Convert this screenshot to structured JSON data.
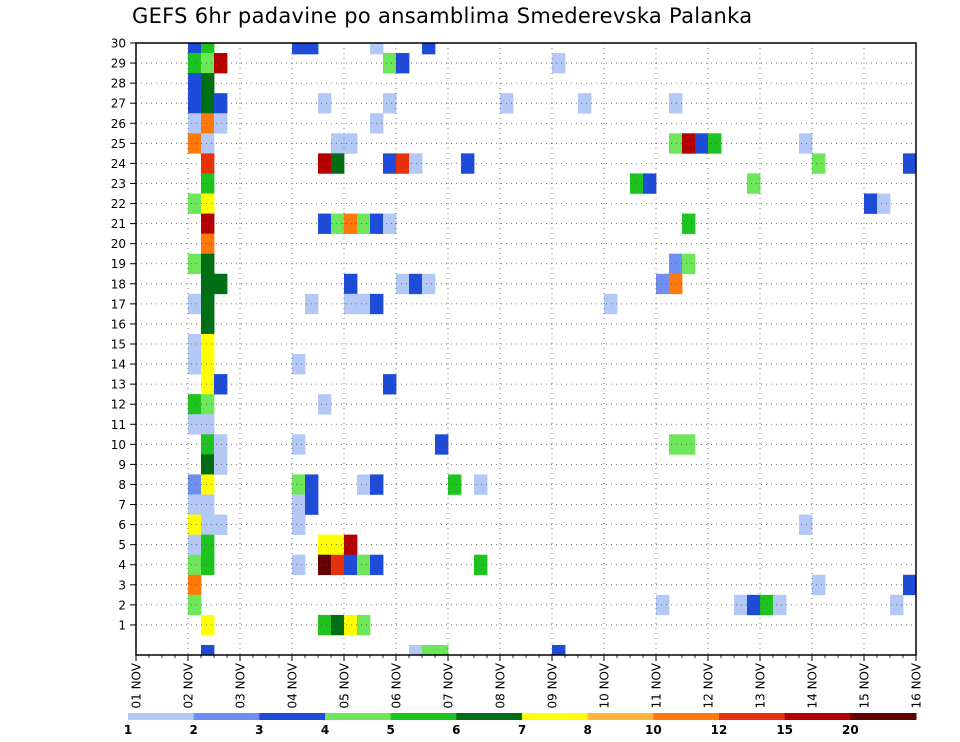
{
  "chart_data": {
    "type": "heatmap",
    "title": "GEFS 6hr padavine po ansamblima Smederevska Palanka",
    "x_tick_labels": [
      "01 NOV",
      "02 NOV",
      "03 NOV",
      "04 NOV",
      "05 NOV",
      "06 NOV",
      "07 NOV",
      "08 NOV",
      "09 NOV",
      "10 NOV",
      "11 NOV",
      "12 NOV",
      "13 NOV",
      "14 NOV",
      "15 NOV",
      "16 NOV"
    ],
    "y_tick_labels": [
      "1",
      "2",
      "3",
      "4",
      "5",
      "6",
      "7",
      "8",
      "9",
      "10",
      "11",
      "12",
      "13",
      "14",
      "15",
      "16",
      "17",
      "18",
      "19",
      "20",
      "21",
      "22",
      "23",
      "24",
      "25",
      "26",
      "27",
      "28",
      "29",
      "30"
    ],
    "x_range": [
      "01 NOV 00Z",
      "16 NOV 00Z"
    ],
    "x_step_hours": 6,
    "y_range": [
      0,
      30
    ],
    "grid": true,
    "colorbar": {
      "placement": "bottom",
      "labels": [
        "1",
        "2",
        "3",
        "4",
        "5",
        "6",
        "7",
        "8",
        "10",
        "12",
        "15",
        "20"
      ],
      "colors": [
        "#b4c8f5",
        "#6e8ef0",
        "#1e4bd8",
        "#6ee65a",
        "#1ec31e",
        "#006e14",
        "#ffff00",
        "#ffb43c",
        "#ff780a",
        "#e6320a",
        "#b40000",
        "#640000"
      ]
    },
    "cells": [
      [
        4,
        30,
        3
      ],
      [
        4,
        29,
        5
      ],
      [
        4,
        28,
        3
      ],
      [
        4,
        27,
        3
      ],
      [
        4,
        26,
        1
      ],
      [
        4,
        25,
        9
      ],
      [
        4,
        22,
        4
      ],
      [
        4,
        19,
        4
      ],
      [
        4,
        17,
        1
      ],
      [
        4,
        15,
        1
      ],
      [
        4,
        14,
        1
      ],
      [
        4,
        12,
        5
      ],
      [
        4,
        11,
        1
      ],
      [
        4,
        8,
        2
      ],
      [
        4,
        7,
        1
      ],
      [
        4,
        6,
        7
      ],
      [
        4,
        5,
        1
      ],
      [
        4,
        4,
        4
      ],
      [
        4,
        3,
        9
      ],
      [
        4,
        2,
        4
      ],
      [
        5,
        30,
        5
      ],
      [
        5,
        29,
        4
      ],
      [
        5,
        28,
        6
      ],
      [
        5,
        27,
        6
      ],
      [
        5,
        26,
        9
      ],
      [
        5,
        25,
        1
      ],
      [
        5,
        24,
        10
      ],
      [
        5,
        23,
        5
      ],
      [
        5,
        22,
        7
      ],
      [
        5,
        21,
        11
      ],
      [
        5,
        20,
        9
      ],
      [
        5,
        19,
        6
      ],
      [
        5,
        18,
        6
      ],
      [
        5,
        17,
        6
      ],
      [
        5,
        16,
        6
      ],
      [
        5,
        15,
        7
      ],
      [
        5,
        14,
        7
      ],
      [
        5,
        13,
        7
      ],
      [
        5,
        12,
        4
      ],
      [
        5,
        11,
        1
      ],
      [
        5,
        10,
        5
      ],
      [
        5,
        9,
        6
      ],
      [
        5,
        8,
        7
      ],
      [
        5,
        7,
        1
      ],
      [
        5,
        6,
        1
      ],
      [
        5,
        5,
        5
      ],
      [
        5,
        4,
        5
      ],
      [
        5,
        1,
        7
      ],
      [
        5,
        0,
        3
      ],
      [
        6,
        29,
        11
      ],
      [
        6,
        27,
        3
      ],
      [
        6,
        26,
        1
      ],
      [
        6,
        18,
        6
      ],
      [
        6,
        13,
        3
      ],
      [
        6,
        10,
        1
      ],
      [
        6,
        9,
        1
      ],
      [
        6,
        6,
        1
      ],
      [
        12,
        30,
        3
      ],
      [
        12,
        14,
        1
      ],
      [
        12,
        10,
        1
      ],
      [
        12,
        8,
        4
      ],
      [
        12,
        7,
        1
      ],
      [
        12,
        6,
        1
      ],
      [
        12,
        4,
        1
      ],
      [
        13,
        30,
        3
      ],
      [
        13,
        8,
        3
      ],
      [
        13,
        7,
        3
      ],
      [
        13,
        17,
        1
      ],
      [
        14,
        27,
        1
      ],
      [
        14,
        24,
        11
      ],
      [
        14,
        21,
        3
      ],
      [
        14,
        12,
        1
      ],
      [
        14,
        5,
        7
      ],
      [
        14,
        4,
        12
      ],
      [
        14,
        1,
        5
      ],
      [
        15,
        25,
        1
      ],
      [
        15,
        24,
        6
      ],
      [
        15,
        21,
        4
      ],
      [
        15,
        5,
        7
      ],
      [
        15,
        4,
        10
      ],
      [
        15,
        1,
        6
      ],
      [
        16,
        25,
        1
      ],
      [
        16,
        21,
        9
      ],
      [
        16,
        18,
        3
      ],
      [
        16,
        17,
        1
      ],
      [
        16,
        5,
        11
      ],
      [
        16,
        4,
        3
      ],
      [
        16,
        1,
        7
      ],
      [
        17,
        21,
        4
      ],
      [
        17,
        17,
        1
      ],
      [
        17,
        8,
        1
      ],
      [
        17,
        4,
        4
      ],
      [
        17,
        1,
        4
      ],
      [
        18,
        30,
        1
      ],
      [
        18,
        26,
        1
      ],
      [
        18,
        21,
        3
      ],
      [
        18,
        17,
        3
      ],
      [
        18,
        8,
        3
      ],
      [
        18,
        4,
        3
      ],
      [
        19,
        29,
        4
      ],
      [
        19,
        27,
        1
      ],
      [
        19,
        24,
        3
      ],
      [
        19,
        21,
        1
      ],
      [
        19,
        13,
        3
      ],
      [
        20,
        29,
        3
      ],
      [
        20,
        24,
        10
      ],
      [
        20,
        18,
        1
      ],
      [
        21,
        24,
        1
      ],
      [
        21,
        18,
        3
      ],
      [
        21,
        0,
        1
      ],
      [
        22,
        30,
        3
      ],
      [
        22,
        18,
        1
      ],
      [
        22,
        0,
        4
      ],
      [
        23,
        10,
        3
      ],
      [
        23,
        0,
        4
      ],
      [
        24,
        8,
        5
      ],
      [
        25,
        24,
        3
      ],
      [
        26,
        8,
        1
      ],
      [
        26,
        4,
        5
      ],
      [
        28,
        27,
        1
      ],
      [
        32,
        29,
        1
      ],
      [
        32,
        0,
        3
      ],
      [
        34,
        27,
        1
      ],
      [
        36,
        17,
        1
      ],
      [
        38,
        23,
        5
      ],
      [
        39,
        23,
        3
      ],
      [
        40,
        18,
        2
      ],
      [
        40,
        2,
        1
      ],
      [
        41,
        27,
        1
      ],
      [
        41,
        25,
        4
      ],
      [
        41,
        19,
        2
      ],
      [
        41,
        18,
        9
      ],
      [
        41,
        10,
        4
      ],
      [
        42,
        25,
        11
      ],
      [
        42,
        21,
        5
      ],
      [
        42,
        19,
        4
      ],
      [
        42,
        10,
        4
      ],
      [
        43,
        25,
        3
      ],
      [
        44,
        25,
        5
      ],
      [
        46,
        2,
        1
      ],
      [
        47,
        2,
        3
      ],
      [
        48,
        2,
        5
      ],
      [
        49,
        2,
        1
      ],
      [
        47,
        23,
        4
      ],
      [
        51,
        6,
        1
      ],
      [
        51,
        25,
        1
      ],
      [
        52,
        3,
        1
      ],
      [
        52,
        24,
        4
      ],
      [
        56,
        22,
        3
      ],
      [
        57,
        22,
        1
      ],
      [
        58,
        2,
        1
      ],
      [
        59,
        24,
        3
      ],
      [
        59,
        3,
        3
      ]
    ]
  }
}
